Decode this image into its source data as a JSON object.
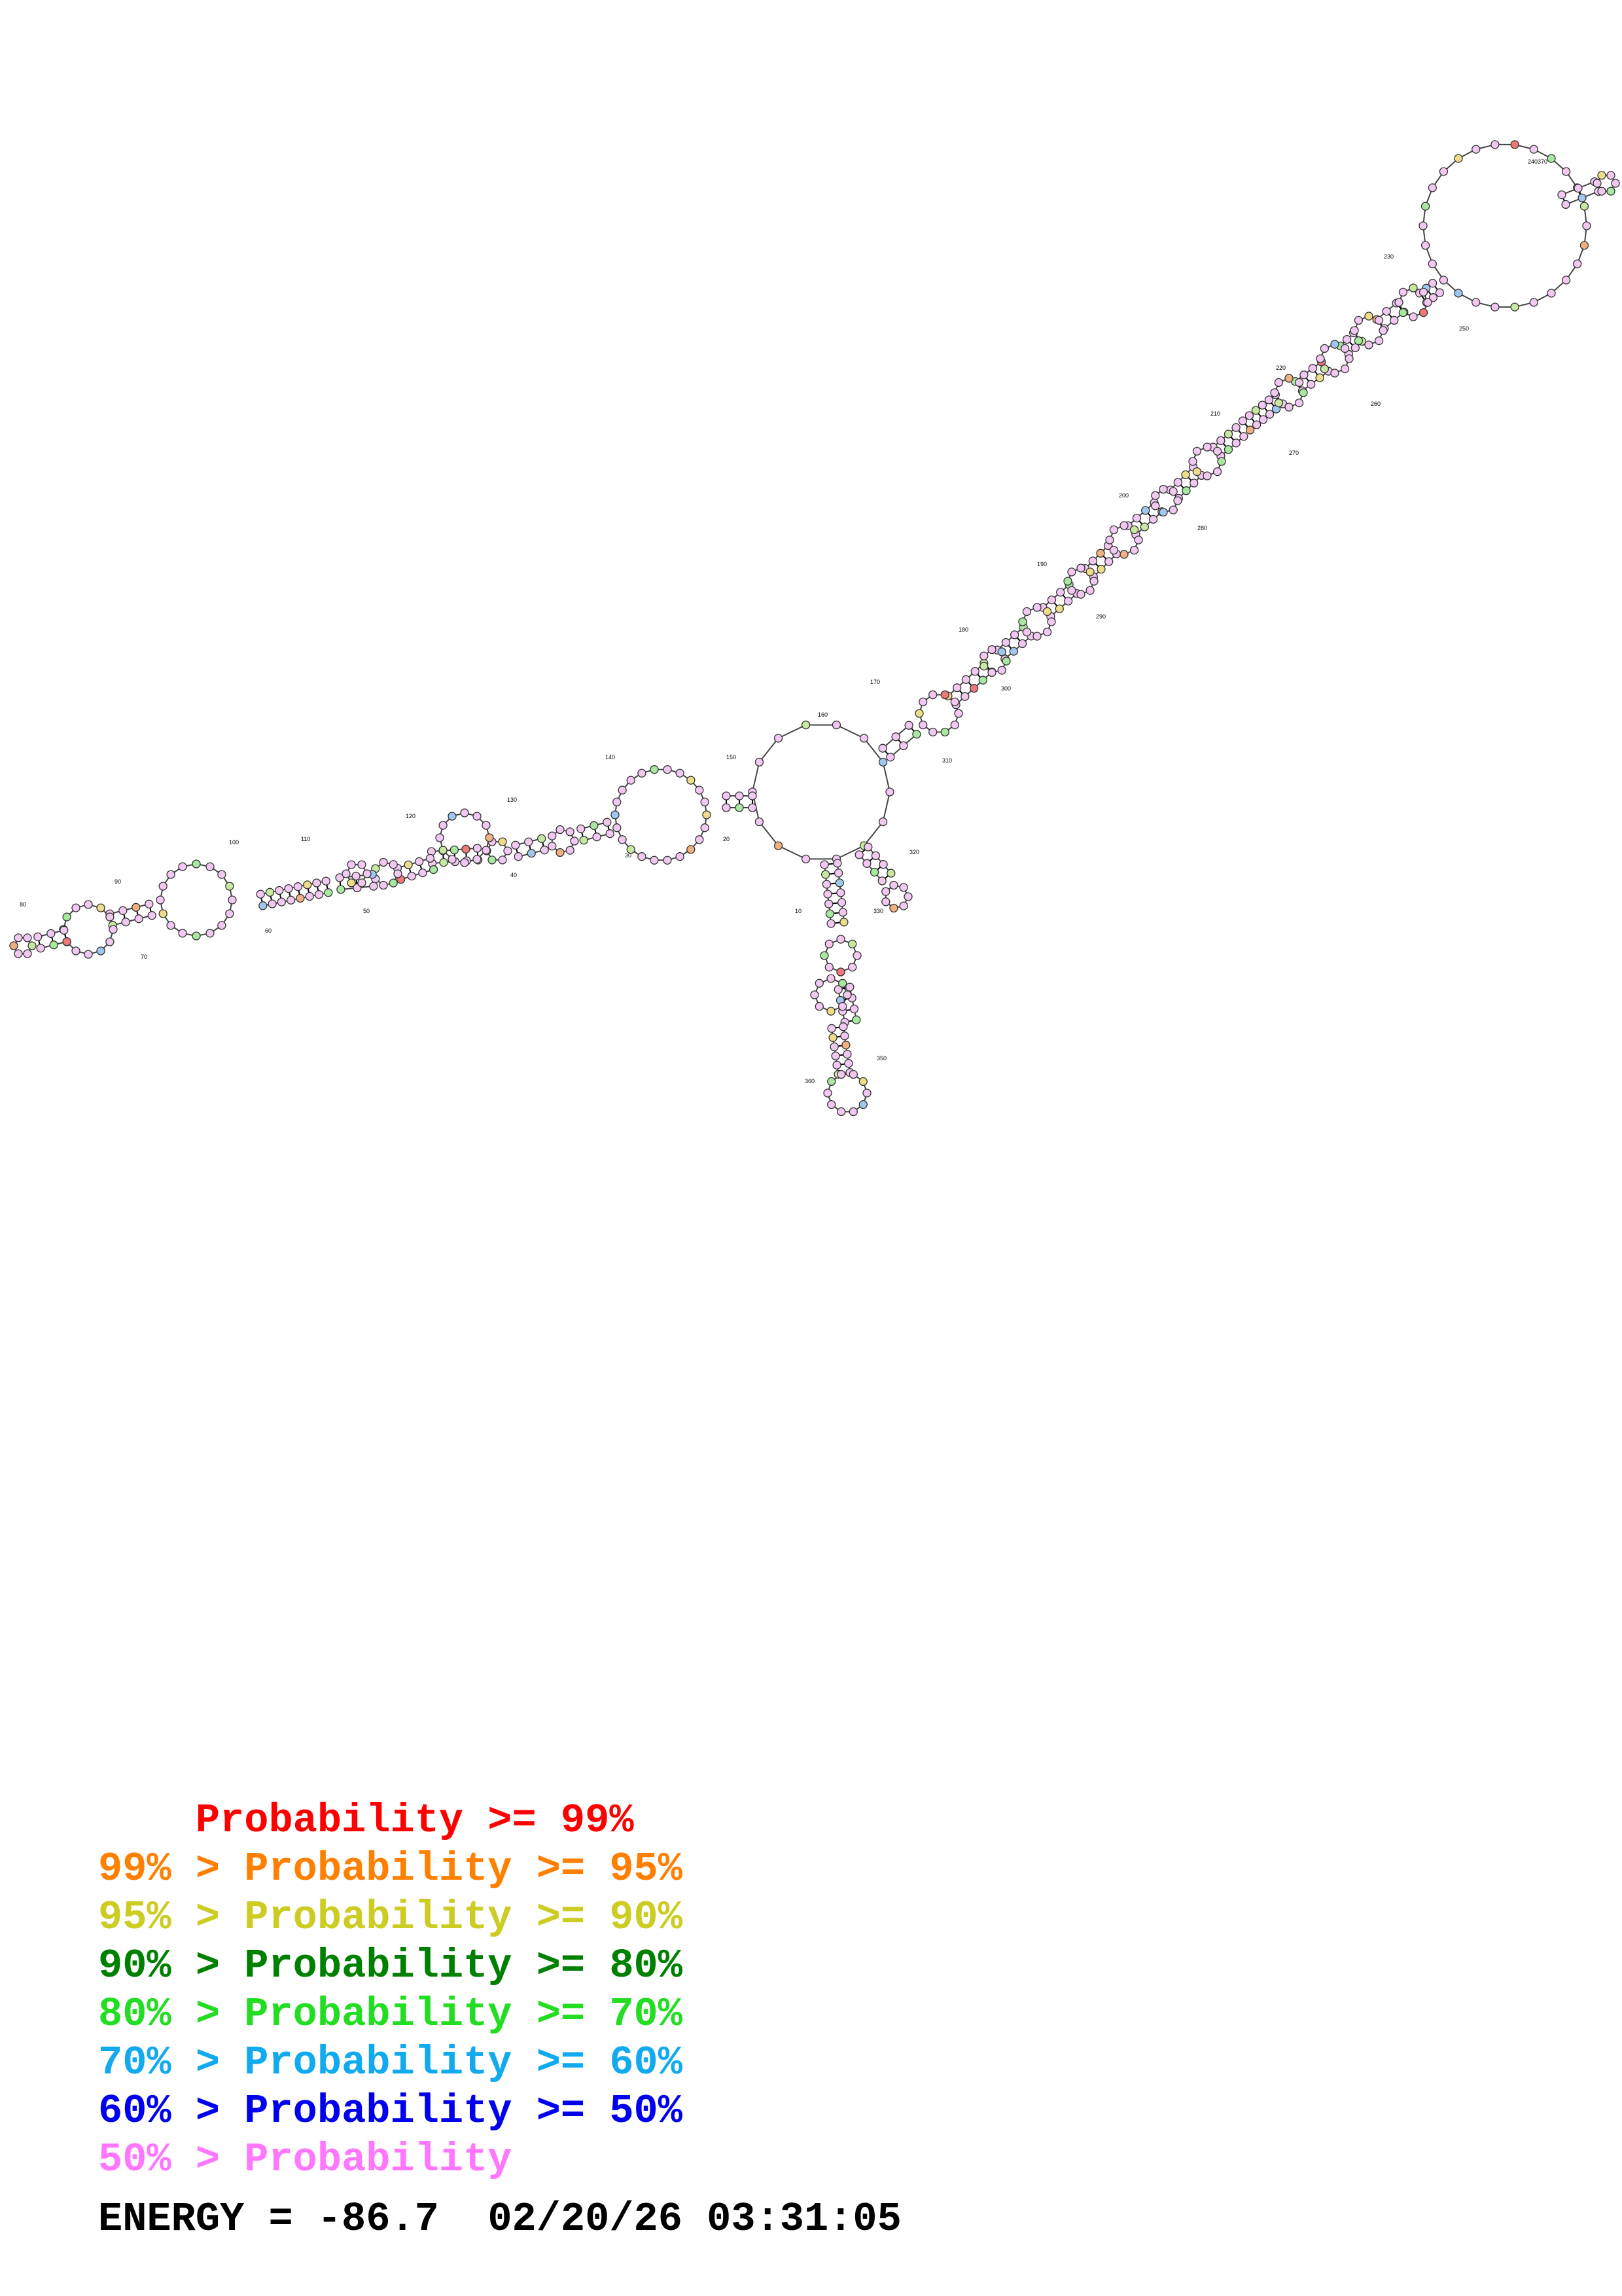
{
  "legend": [
    {
      "prefix": "    ",
      "text": "Probability >= 99%",
      "color": "#ff0000"
    },
    {
      "prefix": "99% > ",
      "text": "Probability >= 95%",
      "color": "#ff8000"
    },
    {
      "prefix": "95% > ",
      "text": "Probability >= 90%",
      "color": "#cccc22"
    },
    {
      "prefix": "90% > ",
      "text": "Probability >= 80%",
      "color": "#008000"
    },
    {
      "prefix": "80% > ",
      "text": "Probability >= 70%",
      "color": "#22dd22"
    },
    {
      "prefix": "70% > ",
      "text": "Probability >= 60%",
      "color": "#11aaee"
    },
    {
      "prefix": "60% > ",
      "text": "Probability >= 50%",
      "color": "#0000ee"
    },
    {
      "prefix": "50% > ",
      "text": "Probability",
      "color": "#ff77ff"
    }
  ],
  "energy_label": "ENERGY = -86.7",
  "timestamp": "02/20/26 03:31:05",
  "position_labels": [
    "10",
    "20",
    "30",
    "40",
    "50",
    "60",
    "70",
    "80",
    "90",
    "100",
    "110",
    "120",
    "130",
    "140",
    "150",
    "160",
    "170",
    "180",
    "190",
    "200",
    "210",
    "220",
    "230",
    "240",
    "250",
    "260",
    "270",
    "280",
    "290",
    "300",
    "310",
    "320",
    "330",
    "350",
    "360",
    "370"
  ],
  "node_fill": "#f0c8f0",
  "stroke_color": "#000000"
}
